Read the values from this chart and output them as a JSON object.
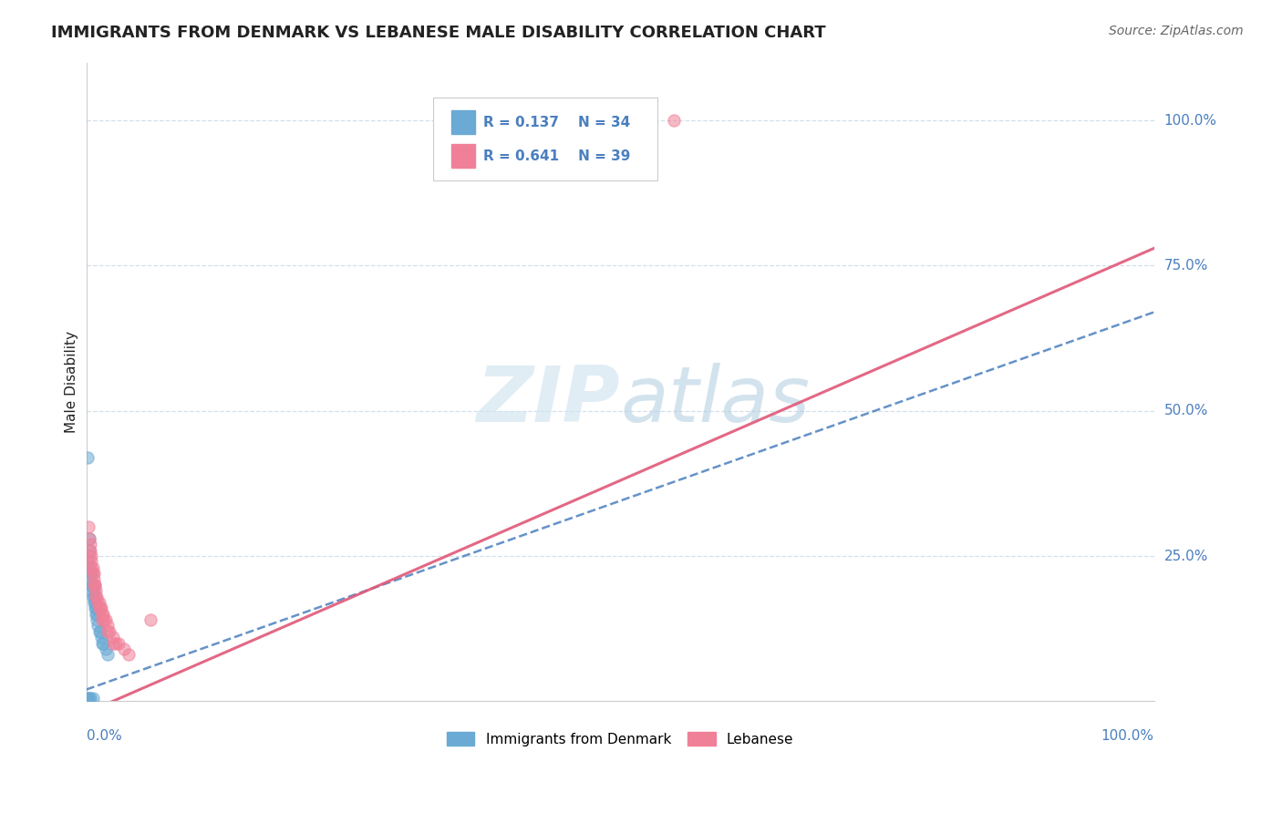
{
  "title": "IMMIGRANTS FROM DENMARK VS LEBANESE MALE DISABILITY CORRELATION CHART",
  "source": "Source: ZipAtlas.com",
  "ylabel": "Male Disability",
  "legend_entries": [
    {
      "label": "Immigrants from Denmark",
      "R": "0.137",
      "N": "34",
      "color": "#a8c4e0"
    },
    {
      "label": "Lebanese",
      "R": "0.641",
      "N": "39",
      "color": "#f4a0b0"
    }
  ],
  "denmark_scatter_x": [
    0.001,
    0.002,
    0.003,
    0.003,
    0.004,
    0.004,
    0.005,
    0.005,
    0.006,
    0.006,
    0.007,
    0.007,
    0.008,
    0.008,
    0.009,
    0.009,
    0.01,
    0.01,
    0.011,
    0.012,
    0.013,
    0.014,
    0.015,
    0.016,
    0.018,
    0.02,
    0.003,
    0.005,
    0.007,
    0.002,
    0.004,
    0.006,
    0.001,
    0.002
  ],
  "denmark_scatter_y": [
    0.42,
    0.24,
    0.23,
    0.26,
    0.22,
    0.21,
    0.2,
    0.19,
    0.18,
    0.2,
    0.17,
    0.18,
    0.16,
    0.17,
    0.15,
    0.16,
    0.14,
    0.15,
    0.13,
    0.12,
    0.12,
    0.11,
    0.1,
    0.1,
    0.09,
    0.08,
    0.28,
    0.22,
    0.19,
    0.005,
    0.005,
    0.005,
    0.005,
    0.005
  ],
  "lebanese_scatter_x": [
    0.002,
    0.003,
    0.004,
    0.004,
    0.005,
    0.005,
    0.006,
    0.006,
    0.007,
    0.007,
    0.008,
    0.008,
    0.009,
    0.01,
    0.011,
    0.012,
    0.013,
    0.014,
    0.015,
    0.016,
    0.017,
    0.018,
    0.02,
    0.022,
    0.025,
    0.028,
    0.03,
    0.035,
    0.04,
    0.003,
    0.005,
    0.007,
    0.009,
    0.012,
    0.015,
    0.02,
    0.025,
    0.06,
    0.55
  ],
  "lebanese_scatter_y": [
    0.3,
    0.28,
    0.27,
    0.26,
    0.25,
    0.24,
    0.23,
    0.22,
    0.22,
    0.21,
    0.2,
    0.2,
    0.19,
    0.18,
    0.17,
    0.17,
    0.16,
    0.16,
    0.15,
    0.15,
    0.14,
    0.14,
    0.13,
    0.12,
    0.11,
    0.1,
    0.1,
    0.09,
    0.08,
    0.25,
    0.23,
    0.2,
    0.18,
    0.16,
    0.14,
    0.12,
    0.1,
    0.14,
    1.0
  ],
  "denmark_line_x0": 0.0,
  "denmark_line_y0": 0.02,
  "denmark_line_x1": 1.0,
  "denmark_line_y1": 0.67,
  "lebanese_line_x0": 0.0,
  "lebanese_line_y0": -0.02,
  "lebanese_line_x1": 1.0,
  "lebanese_line_y1": 0.78,
  "denmark_line_color": "#4a7fbf",
  "lebanese_line_color": "#e05878",
  "denmark_scatter_color": "#6aaad4",
  "lebanese_scatter_color": "#f08098",
  "grid_color": "#c8d8e8",
  "background_color": "#ffffff",
  "xlim": [
    0.0,
    1.0
  ],
  "ylim": [
    0.0,
    1.1
  ],
  "tick_color": "#4a7fbf",
  "title_color": "#222222",
  "source_color": "#666666",
  "ylabel_color": "#222222"
}
